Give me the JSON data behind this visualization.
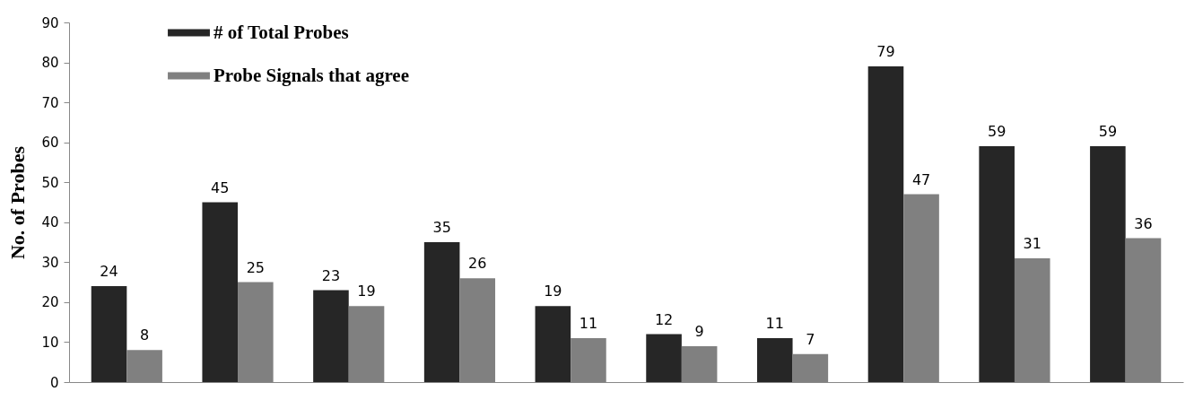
{
  "chart_data": {
    "type": "bar",
    "ylabel": "No. of Probes",
    "categories": [
      null,
      null,
      null,
      null,
      null,
      null,
      null,
      null,
      null,
      null
    ],
    "series": [
      {
        "name": "# of Total Probes",
        "color": "#262626",
        "values": [
          24,
          45,
          23,
          35,
          19,
          12,
          11,
          79,
          59,
          59
        ]
      },
      {
        "name": "Probe Signals that agree",
        "color": "#808080",
        "values": [
          8,
          25,
          19,
          26,
          11,
          9,
          7,
          47,
          31,
          36
        ]
      }
    ],
    "ylim": [
      0,
      90
    ],
    "yticks": [
      0,
      10,
      20,
      30,
      40,
      50,
      60,
      70,
      80,
      90
    ],
    "grid": false,
    "legend": "top left",
    "tick_labels": "y",
    "data_labels": true
  }
}
